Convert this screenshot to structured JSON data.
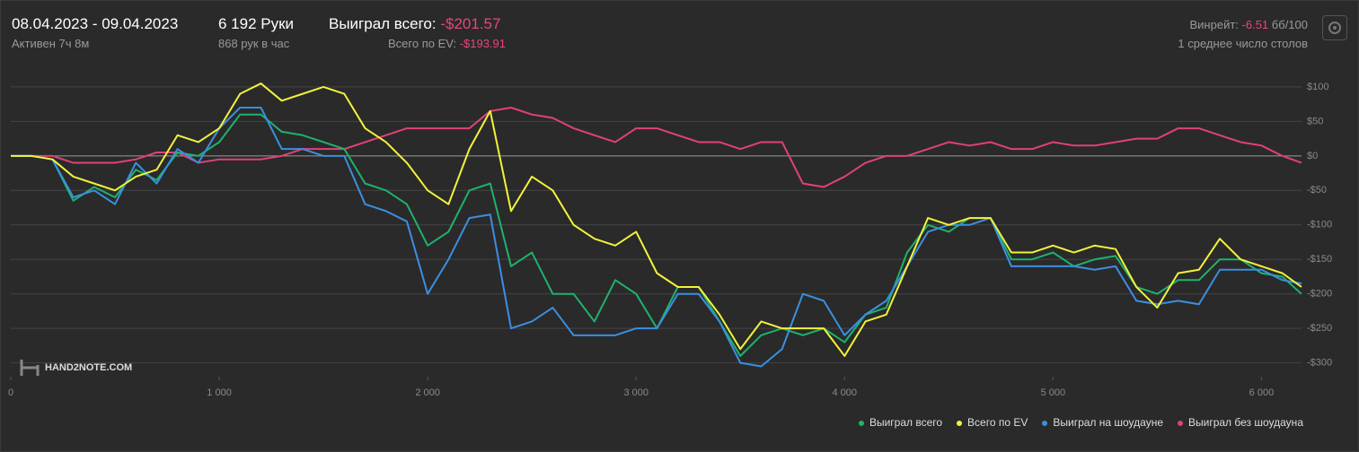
{
  "header": {
    "date_range": "08.04.2023 - 09.04.2023",
    "active": "Активен 7ч 8м",
    "hands": "6 192 Руки",
    "hands_per_hour": "868 рук в час",
    "won_label": "Выиграл всего:",
    "won_value": "-$201.57",
    "ev_label": "Всего по EV:",
    "ev_value": "-$193.91",
    "winrate_label": "Винрейт:",
    "winrate_value": "-6.51",
    "winrate_unit": "бб/100",
    "tables": "1 среднее число столов",
    "logo": "HAND2NOTE.COM"
  },
  "chart_data": {
    "type": "line",
    "x": [
      0,
      100,
      200,
      300,
      400,
      500,
      600,
      700,
      800,
      900,
      1000,
      1100,
      1200,
      1300,
      1400,
      1500,
      1600,
      1700,
      1800,
      1900,
      2000,
      2100,
      2200,
      2300,
      2400,
      2500,
      2600,
      2700,
      2800,
      2900,
      3000,
      3100,
      3200,
      3300,
      3400,
      3500,
      3600,
      3700,
      3800,
      3900,
      4000,
      4100,
      4200,
      4300,
      4400,
      4500,
      4600,
      4700,
      4800,
      4900,
      5000,
      5100,
      5200,
      5300,
      5400,
      5500,
      5600,
      5700,
      5800,
      5900,
      6000,
      6100,
      6192
    ],
    "series": [
      {
        "name": "Выиграл всего",
        "color": "#1db36c",
        "values": [
          0,
          0,
          -5,
          -65,
          -45,
          -60,
          -20,
          -35,
          5,
          0,
          20,
          60,
          60,
          35,
          30,
          20,
          10,
          -40,
          -50,
          -70,
          -130,
          -110,
          -50,
          -40,
          -160,
          -140,
          -200,
          -200,
          -240,
          -180,
          -200,
          -250,
          -190,
          -190,
          -240,
          -290,
          -260,
          -250,
          -260,
          -250,
          -270,
          -230,
          -220,
          -140,
          -100,
          -110,
          -90,
          -90,
          -150,
          -150,
          -140,
          -160,
          -150,
          -145,
          -190,
          -200,
          -180,
          -180,
          -150,
          -150,
          -170,
          -175,
          -200
        ]
      },
      {
        "name": "Всего по EV",
        "color": "#f2f23c",
        "values": [
          0,
          0,
          -5,
          -30,
          -40,
          -50,
          -30,
          -20,
          30,
          20,
          40,
          90,
          105,
          80,
          90,
          100,
          90,
          40,
          20,
          -10,
          -50,
          -70,
          10,
          65,
          -80,
          -30,
          -50,
          -100,
          -120,
          -130,
          -110,
          -170,
          -190,
          -190,
          -230,
          -280,
          -240,
          -250,
          -250,
          -250,
          -290,
          -240,
          -230,
          -160,
          -90,
          -100,
          -90,
          -90,
          -140,
          -140,
          -130,
          -140,
          -130,
          -135,
          -190,
          -220,
          -170,
          -165,
          -120,
          -150,
          -160,
          -170,
          -190
        ]
      },
      {
        "name": "Выиграл на шоудауне",
        "color": "#3b8fe0",
        "values": [
          0,
          0,
          -5,
          -60,
          -50,
          -70,
          -10,
          -40,
          10,
          -10,
          40,
          70,
          70,
          10,
          10,
          0,
          0,
          -70,
          -80,
          -95,
          -200,
          -150,
          -90,
          -85,
          -250,
          -240,
          -220,
          -260,
          -260,
          -260,
          -250,
          -250,
          -200,
          -200,
          -240,
          -300,
          -305,
          -280,
          -200,
          -210,
          -260,
          -230,
          -210,
          -160,
          -110,
          -100,
          -100,
          -90,
          -160,
          -160,
          -160,
          -160,
          -165,
          -160,
          -210,
          -215,
          -210,
          -215,
          -165,
          -165,
          -165,
          -180,
          -185
        ]
      },
      {
        "name": "Выиграл без шоудауна",
        "color": "#e0417a",
        "values": [
          0,
          0,
          0,
          -10,
          -10,
          -10,
          -5,
          5,
          5,
          -10,
          -5,
          -5,
          -5,
          0,
          10,
          10,
          10,
          20,
          30,
          40,
          40,
          40,
          40,
          65,
          70,
          60,
          55,
          40,
          30,
          20,
          40,
          40,
          30,
          20,
          20,
          10,
          20,
          20,
          -40,
          -45,
          -30,
          -10,
          0,
          0,
          10,
          20,
          15,
          20,
          10,
          10,
          20,
          15,
          15,
          20,
          25,
          25,
          40,
          40,
          30,
          20,
          15,
          0,
          -10
        ]
      }
    ],
    "xlim": [
      0,
      6192
    ],
    "ylim": [
      -320,
      122
    ],
    "xticks": [
      0,
      {
        "value": 1000,
        "label": "1 000"
      },
      {
        "value": 2000,
        "label": "2 000"
      },
      {
        "value": 3000,
        "label": "3 000"
      },
      {
        "value": 4000,
        "label": "4 000"
      },
      {
        "value": 5000,
        "label": "5 000"
      },
      {
        "value": 6000,
        "label": "6 000"
      }
    ],
    "yticks": [
      {
        "value": -300,
        "label": "-$300"
      },
      {
        "value": -250,
        "label": "-$250"
      },
      {
        "value": -200,
        "label": "-$200"
      },
      {
        "value": -150,
        "label": "-$150"
      },
      {
        "value": -100,
        "label": "-$100"
      },
      {
        "value": -50,
        "label": "-$50"
      },
      {
        "value": 0,
        "label": "$0"
      },
      {
        "value": 50,
        "label": "$50"
      },
      {
        "value": 100,
        "label": "$100"
      }
    ],
    "grid": true
  }
}
